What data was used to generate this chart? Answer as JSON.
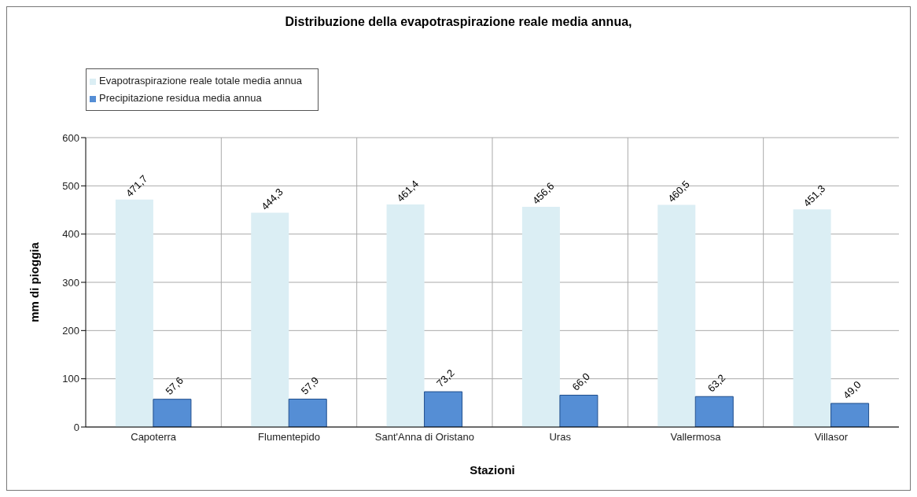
{
  "chart_data": {
    "type": "bar",
    "title": "Distribuzione della evapotraspirazione reale media annua,",
    "xlabel": "Stazioni",
    "ylabel": "mm di pioggia",
    "categories": [
      "Capoterra",
      "Flumentepido",
      "Sant'Anna di Oristano",
      "Uras",
      "Vallermosa",
      "Villasor"
    ],
    "series": [
      {
        "name": "Evapotraspirazione reale totale media annua",
        "color": "#dbeef4",
        "values": [
          471.7,
          444.3,
          461.4,
          456.6,
          460.5,
          451.3
        ],
        "value_labels": [
          "471,7",
          "444,3",
          "461,4",
          "456,6",
          "460,5",
          "451,3"
        ]
      },
      {
        "name": "Precipitazione residua media annua",
        "color": "#558ed5",
        "values": [
          57.6,
          57.9,
          73.2,
          66.0,
          63.2,
          49.0
        ],
        "value_labels": [
          "57,6",
          "57,9",
          "73,2",
          "66,0",
          "63,2",
          "49,0"
        ]
      }
    ],
    "ylim": [
      0,
      600
    ],
    "yticks": [
      0,
      100,
      200,
      300,
      400,
      500,
      600
    ],
    "grid": true,
    "legend": "top left"
  }
}
